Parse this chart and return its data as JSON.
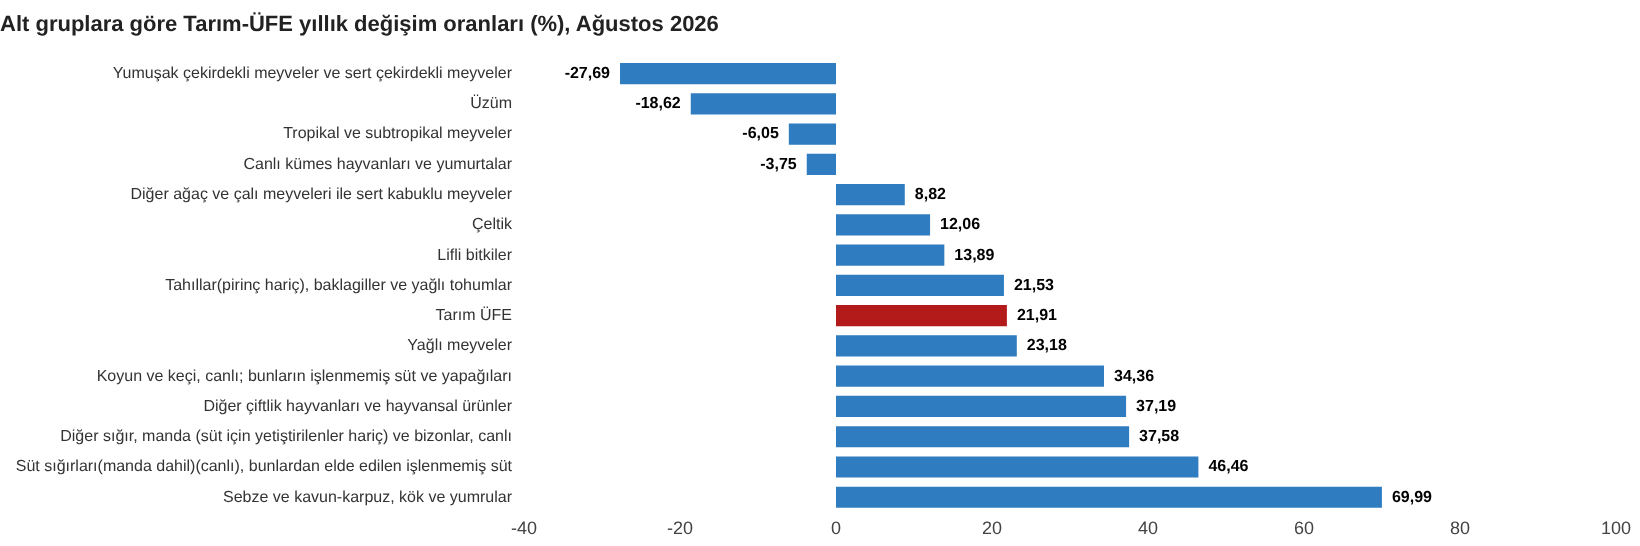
{
  "chart_data": {
    "type": "bar",
    "orientation": "horizontal",
    "title": "Alt gruplara göre Tarım-ÜFE yıllık değişim oranları (%), Ağustos 2026",
    "categories": [
      "Yumuşak çekirdekli meyveler ve sert çekirdekli meyveler",
      "Üzüm",
      "Tropikal ve subtropikal meyveler",
      "Canlı kümes hayvanları ve yumurtalar",
      "Diğer ağaç ve çalı meyveleri ile sert kabuklu meyveler",
      "Çeltik",
      "Lifli bitkiler",
      "Tahıllar(pirinç hariç), baklagiller ve yağlı tohumlar",
      "Tarım ÜFE",
      "Yağlı meyveler",
      "Koyun ve keçi, canlı; bunların işlenmemiş süt ve yapağıları",
      "Diğer çiftlik hayvanları ve hayvansal ürünler",
      "Diğer sığır, manda (süt için yetiştirilenler hariç) ve bizonlar, canlı",
      "Süt sığırları(manda dahil)(canlı), bunlardan elde edilen işlenmemiş süt",
      "Sebze ve kavun-karpuz, kök ve yumrular"
    ],
    "values": [
      -27.69,
      -18.62,
      -6.05,
      -3.75,
      8.82,
      12.06,
      13.89,
      21.53,
      21.91,
      23.18,
      34.36,
      37.19,
      37.58,
      46.46,
      69.99
    ],
    "value_labels": [
      "-27,69",
      "-18,62",
      "-6,05",
      "-3,75",
      "8,82",
      "12,06",
      "13,89",
      "21,53",
      "21,91",
      "23,18",
      "34,36",
      "37,19",
      "37,58",
      "46,46",
      "69,99"
    ],
    "colors": [
      "#2f7dc0",
      "#2f7dc0",
      "#2f7dc0",
      "#2f7dc0",
      "#2f7dc0",
      "#2f7dc0",
      "#2f7dc0",
      "#2f7dc0",
      "#b31b1b",
      "#2f7dc0",
      "#2f7dc0",
      "#2f7dc0",
      "#2f7dc0",
      "#2f7dc0",
      "#2f7dc0"
    ],
    "xlim": [
      -40,
      100
    ],
    "xticks": [
      -40,
      -20,
      0,
      20,
      40,
      60,
      80,
      100
    ],
    "grid": false,
    "legend": false
  }
}
